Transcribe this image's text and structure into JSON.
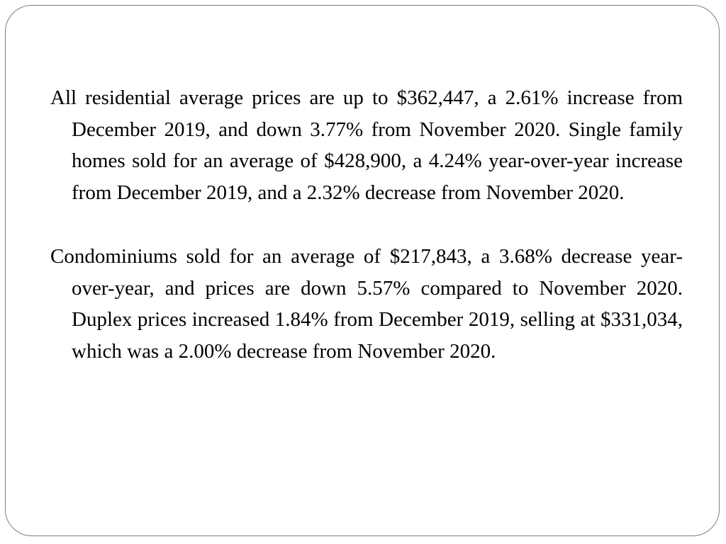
{
  "slide": {
    "paragraphs": [
      "All residential average prices are up to $362,447, a 2.61% increase from December 2019, and down 3.77% from November 2020. Single family homes sold for an average of $428,900, a 4.24% year-over-year increase from December 2019, and a 2.32% decrease from November 2020.",
      "Condominiums sold for an average of $217,843, a 3.68% decrease year-over-year, and prices are down 5.57% compared to November 2020. Duplex prices increased 1.84% from December 2019, selling at $331,034, which was a 2.00% decrease from November 2020."
    ]
  }
}
